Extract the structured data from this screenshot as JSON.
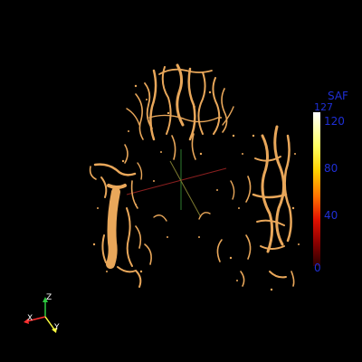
{
  "colorbar": {
    "title": "SAF",
    "max_label": "127",
    "ticks": [
      "120",
      "80",
      "40",
      "0"
    ]
  },
  "orientation_axes": {
    "z_label": "Z",
    "x_label": "X",
    "y_label": "Y",
    "colors": {
      "z": "#2ecc40",
      "x": "#ff3030",
      "y": "#ffff40"
    }
  },
  "rendering": {
    "vessel_color": "#e9a75a",
    "background": "#000000"
  }
}
